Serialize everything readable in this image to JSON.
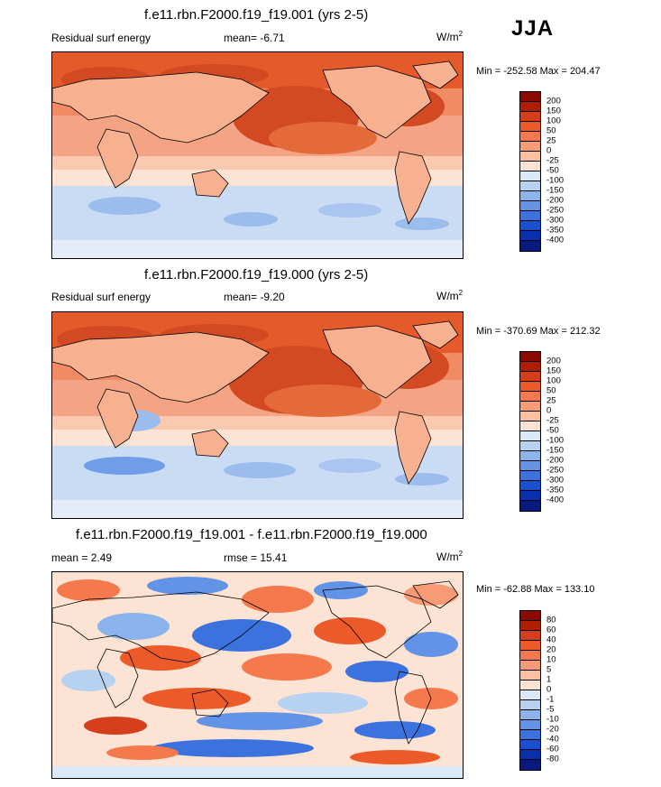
{
  "season": "JJA",
  "panels": [
    {
      "title": "f.e11.rbn.F2000.f19_f19.001 (yrs 2-5)",
      "left_label": "Residual surf energy",
      "center_label": "mean=  -6.71",
      "units_base": "W/m",
      "units_exp": "2",
      "minmax": "Min = -252.58 Max = 204.47"
    },
    {
      "title": "f.e11.rbn.F2000.f19_f19.000 (yrs 2-5)",
      "left_label": "Residual surf energy",
      "center_label": "mean=  -9.20",
      "units_base": "W/m",
      "units_exp": "2",
      "minmax": "Min = -370.69 Max = 212.32"
    },
    {
      "title": "f.e11.rbn.F2000.f19_f19.001 - f.e11.rbn.F2000.f19_f19.000",
      "left_label": "mean =   2.49",
      "center_label": "rmse =  15.41",
      "units_base": "W/m",
      "units_exp": "2",
      "minmax": "Min = -62.88 Max = 133.10"
    }
  ],
  "chart_data": [
    {
      "type": "heatmap",
      "title": "f.e11.rbn.F2000.f19_f19.001 (yrs 2-5)",
      "variable": "Residual surf energy",
      "mean": -6.71,
      "min": -252.58,
      "max": 204.47,
      "units": "W/m2",
      "levels": [
        "200",
        "150",
        "100",
        "50",
        "25",
        "0",
        "-25",
        "-50",
        "-100",
        "-150",
        "-200",
        "-250",
        "-300",
        "-350",
        "-400"
      ],
      "colors": [
        "#8b0a00",
        "#b01e00",
        "#d53e1a",
        "#ec5a2a",
        "#f47a4e",
        "#f79a76",
        "#fbbfa2",
        "#fce3d3",
        "#dbe8f7",
        "#b7d1f1",
        "#8bb4ec",
        "#6393e6",
        "#3b72de",
        "#1a50cf",
        "#0a30ae",
        "#061a80"
      ]
    },
    {
      "type": "heatmap",
      "title": "f.e11.rbn.F2000.f19_f19.000 (yrs 2-5)",
      "variable": "Residual surf energy",
      "mean": -9.2,
      "min": -370.69,
      "max": 212.32,
      "units": "W/m2",
      "levels": [
        "200",
        "150",
        "100",
        "50",
        "25",
        "0",
        "-25",
        "-50",
        "-100",
        "-150",
        "-200",
        "-250",
        "-300",
        "-350",
        "-400"
      ],
      "colors": [
        "#8b0a00",
        "#b01e00",
        "#d53e1a",
        "#ec5a2a",
        "#f47a4e",
        "#f79a76",
        "#fbbfa2",
        "#fce3d3",
        "#dbe8f7",
        "#b7d1f1",
        "#8bb4ec",
        "#6393e6",
        "#3b72de",
        "#1a50cf",
        "#0a30ae",
        "#061a80"
      ]
    },
    {
      "type": "heatmap",
      "title": "f.e11.rbn.F2000.f19_f19.001 - f.e11.rbn.F2000.f19_f19.000",
      "variable": "difference",
      "mean": 2.49,
      "rmse": 15.41,
      "min": -62.88,
      "max": 133.1,
      "units": "W/m2",
      "levels": [
        "80",
        "60",
        "40",
        "20",
        "10",
        "5",
        "1",
        "0",
        "-1",
        "-5",
        "-10",
        "-20",
        "-40",
        "-60",
        "-80"
      ],
      "colors": [
        "#8b0a00",
        "#b01e00",
        "#d53e1a",
        "#ec5a2a",
        "#f47a4e",
        "#f79a76",
        "#fbbfa2",
        "#fce3d3",
        "#dbe8f7",
        "#b7d1f1",
        "#8bb4ec",
        "#6393e6",
        "#3b72de",
        "#1a50cf",
        "#0a30ae",
        "#061a80"
      ]
    }
  ]
}
